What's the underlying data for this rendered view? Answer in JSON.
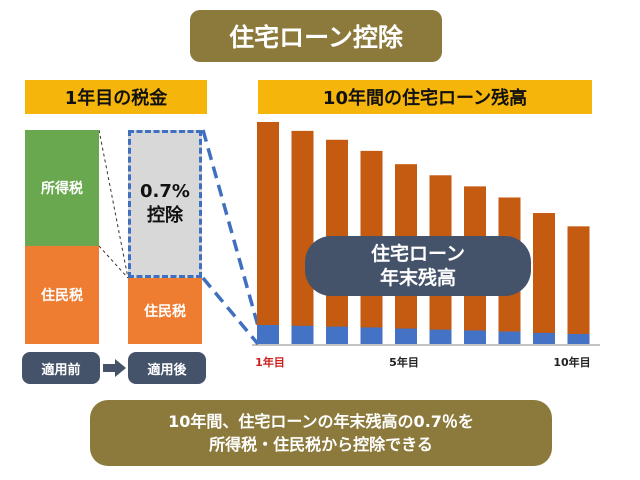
{
  "title": "住宅ローン控除",
  "left_panel": {
    "header": "1年目の税金",
    "income_tax": "所得税",
    "residence_tax_before": "住民税",
    "deduction_line1": "0.7%",
    "deduction_line2": "控除",
    "residence_tax_after": "住民税",
    "before_label": "適用前",
    "after_label": "適用後"
  },
  "right_panel": {
    "header": "10年間の住宅ローン残高",
    "balance_label_line1": "住宅ローン",
    "balance_label_line2": "年末残高",
    "tick_labels": [
      "1年目",
      "5年目",
      "10年目"
    ]
  },
  "bottom_text": {
    "line1": "10年間、住宅ローンの年末残高の0.7％を",
    "line2": "所得税・住民税から控除できる"
  },
  "colors": {
    "balance_bar": "#c55a11",
    "deduction_bar": "#4472c4",
    "highlight_tick": "#cc1f1f"
  },
  "chart_data": {
    "type": "bar",
    "categories": [
      "1",
      "2",
      "3",
      "4",
      "5",
      "6",
      "7",
      "8",
      "9",
      "10"
    ],
    "series": [
      {
        "values": [
          100,
          96,
          92,
          87,
          81,
          76,
          71,
          66,
          59,
          53
        ]
      },
      {
        "values": [
          0.7,
          0.67,
          0.64,
          0.61,
          0.57,
          0.53,
          0.5,
          0.46,
          0.41,
          0.37
        ]
      }
    ],
    "ylim": [
      0,
      100
    ]
  }
}
